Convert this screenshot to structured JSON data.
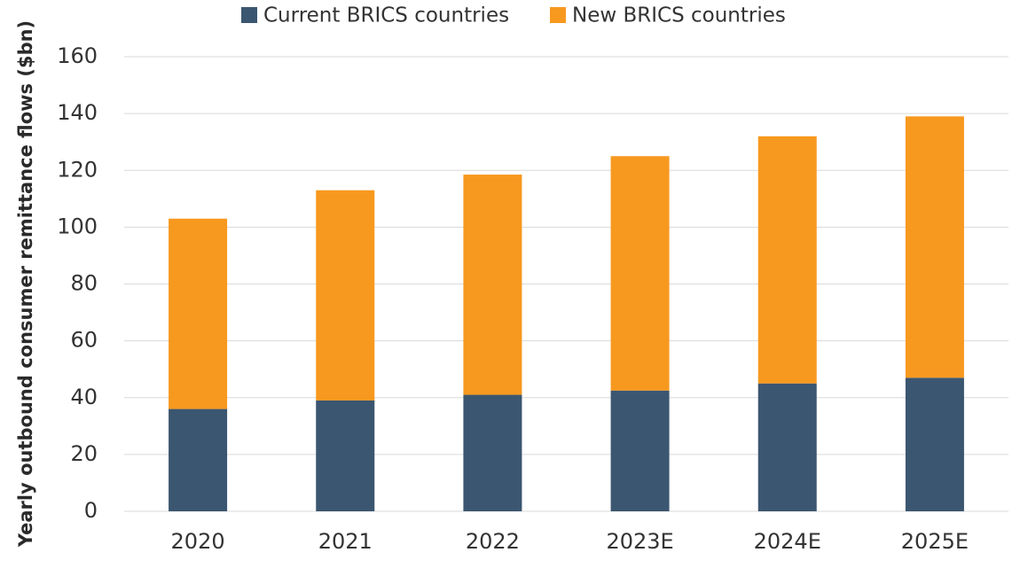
{
  "chart_data": {
    "type": "stacked_bar",
    "y_label": "Yearly outbound consumer remittance flows ($bn)",
    "categories": [
      "2020",
      "2021",
      "2022",
      "2023E",
      "2024E",
      "2025E"
    ],
    "series": [
      {
        "name": "Current BRICS countries",
        "color": "#3b5670",
        "values": [
          36,
          39,
          41,
          42.5,
          45,
          47
        ]
      },
      {
        "name": "New BRICS countries",
        "color": "#f7991f",
        "values": [
          67,
          74,
          77.5,
          82.5,
          87,
          92
        ]
      }
    ],
    "ylim": [
      0,
      160
    ],
    "yticks": [
      0,
      20,
      40,
      60,
      80,
      100,
      120,
      140,
      160
    ],
    "grid": true,
    "legend": "top"
  }
}
